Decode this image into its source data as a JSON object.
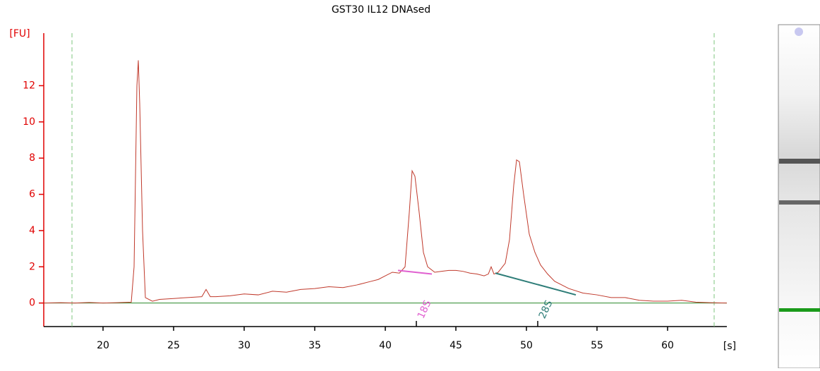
{
  "chart_data": {
    "type": "line",
    "title": "GST30 IL12 DNAsed",
    "y_label": "[FU]",
    "x_label": "[s]",
    "xlim": [
      15.8,
      64.2
    ],
    "ylim": [
      -1.3,
      14.9
    ],
    "xticks": [
      20,
      25,
      30,
      35,
      40,
      45,
      50,
      55,
      60
    ],
    "yticks": [
      0,
      2,
      4,
      6,
      8,
      10,
      12
    ],
    "color": "#c0392b",
    "axis_color": "#e00000",
    "marker_color": "#7cc47c",
    "markers_x": [
      17.8,
      63.3
    ],
    "x": [
      15.8,
      17,
      18,
      19,
      20,
      21,
      22,
      22.2,
      22.4,
      22.5,
      22.6,
      22.8,
      23,
      23.5,
      24,
      25,
      26,
      27,
      27.3,
      27.6,
      28,
      29,
      30,
      31,
      32,
      33,
      34,
      35,
      36,
      37,
      38,
      39,
      39.5,
      40,
      40.5,
      41,
      41.4,
      41.7,
      41.9,
      42.1,
      42.4,
      42.7,
      43,
      43.5,
      44,
      44.5,
      45,
      45.5,
      46,
      46.5,
      47,
      47.3,
      47.5,
      47.7,
      48,
      48.5,
      48.8,
      49.1,
      49.3,
      49.5,
      49.8,
      50.2,
      50.6,
      51,
      51.5,
      52,
      53,
      54,
      55,
      56,
      57,
      58,
      59,
      60,
      61,
      62,
      63,
      64.2
    ],
    "values": [
      0,
      0.02,
      0,
      0.03,
      0,
      0.02,
      0.05,
      2,
      12,
      13.4,
      11,
      4,
      0.3,
      0.1,
      0.2,
      0.25,
      0.3,
      0.35,
      0.75,
      0.35,
      0.35,
      0.4,
      0.5,
      0.45,
      0.65,
      0.6,
      0.75,
      0.8,
      0.9,
      0.85,
      1.0,
      1.2,
      1.3,
      1.5,
      1.7,
      1.65,
      2.0,
      5.0,
      7.3,
      7.0,
      5.0,
      2.8,
      2.0,
      1.7,
      1.75,
      1.8,
      1.8,
      1.75,
      1.65,
      1.6,
      1.5,
      1.6,
      2.0,
      1.6,
      1.7,
      2.2,
      3.5,
      6.5,
      7.9,
      7.8,
      6.0,
      3.8,
      2.8,
      2.1,
      1.6,
      1.2,
      0.8,
      0.55,
      0.45,
      0.3,
      0.3,
      0.15,
      0.1,
      0.1,
      0.15,
      0.05,
      0.02,
      0
    ],
    "peaks": [
      {
        "label": "18S",
        "x": 42.2,
        "color": "#e060d0",
        "baseline_x": [
          40.9,
          43.3
        ],
        "baseline_y": [
          1.8,
          1.6
        ]
      },
      {
        "label": "28S",
        "x": 50.8,
        "color": "#2e7d78",
        "baseline_x": [
          47.8,
          53.5
        ],
        "baseline_y": [
          1.65,
          0.45
        ]
      }
    ]
  }
}
